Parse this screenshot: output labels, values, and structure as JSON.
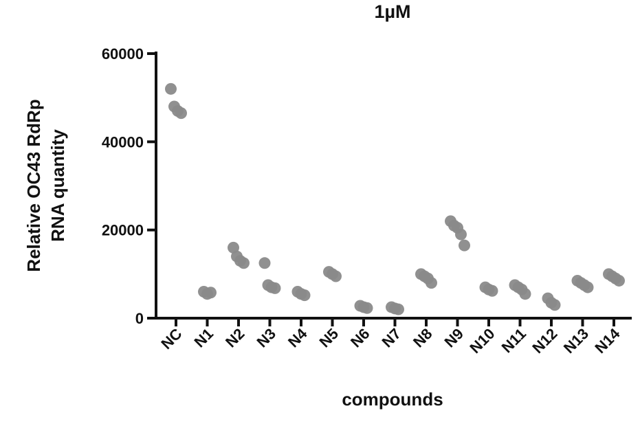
{
  "chart_data": {
    "type": "scatter",
    "title": "1µM",
    "xlabel": "compounds",
    "ylabel_lines": [
      "Relative OC43 RdRp",
      "RNA quantity"
    ],
    "ylim": [
      0,
      60000
    ],
    "yticks": [
      0,
      20000,
      40000,
      60000
    ],
    "ytick_labels": [
      "0",
      "20000",
      "40000",
      "60000"
    ],
    "grid": false,
    "legend": "none",
    "categories": [
      "NC",
      "N1",
      "N2",
      "N3",
      "N4",
      "N5",
      "N6",
      "N7",
      "N8",
      "N9",
      "N10",
      "N11",
      "N12",
      "N13",
      "N14"
    ],
    "series": [
      {
        "point_color": "#8a8a8a",
        "points": [
          {
            "category": "NC",
            "values": [
              52000,
              48000,
              47000,
              46500
            ]
          },
          {
            "category": "N1",
            "values": [
              6000,
              5500,
              5800
            ]
          },
          {
            "category": "N2",
            "values": [
              16000,
              14000,
              13000,
              12500
            ]
          },
          {
            "category": "N3",
            "values": [
              12500,
              7500,
              7000,
              6800
            ]
          },
          {
            "category": "N4",
            "values": [
              6000,
              5500,
              5200
            ]
          },
          {
            "category": "N5",
            "values": [
              10500,
              10000,
              9500
            ]
          },
          {
            "category": "N6",
            "values": [
              2800,
              2500,
              2300
            ]
          },
          {
            "category": "N7",
            "values": [
              2500,
              2200,
              2000
            ]
          },
          {
            "category": "N8",
            "values": [
              10000,
              9500,
              9000,
              8000
            ]
          },
          {
            "category": "N9",
            "values": [
              22000,
              21000,
              20500,
              19000,
              16500
            ]
          },
          {
            "category": "N10",
            "values": [
              7000,
              6500,
              6200
            ]
          },
          {
            "category": "N11",
            "values": [
              7500,
              7000,
              6500,
              5500
            ]
          },
          {
            "category": "N12",
            "values": [
              4500,
              3500,
              3000
            ]
          },
          {
            "category": "N13",
            "values": [
              8500,
              8000,
              7500,
              7000
            ]
          },
          {
            "category": "N14",
            "values": [
              10000,
              9500,
              9000,
              8500
            ]
          }
        ]
      }
    ]
  }
}
